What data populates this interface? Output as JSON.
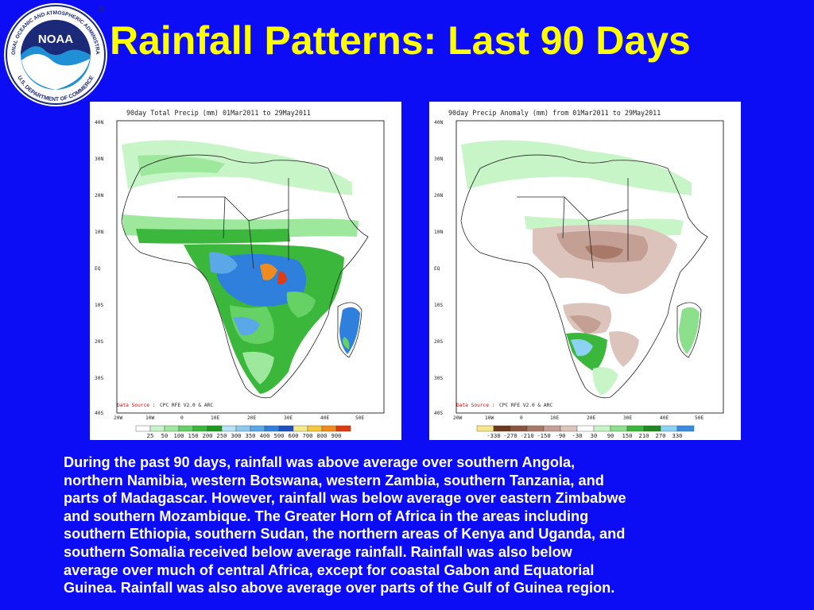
{
  "header": {
    "title": "Rainfall Patterns: Last 90 Days",
    "logo": {
      "icon": "noaa-seal-icon",
      "center_text": "NOAA",
      "ring_top": "NATIONAL OCEANIC AND ATMOSPHERIC ADMINISTRATION",
      "ring_bottom": "U.S. DEPARTMENT OF COMMERCE",
      "colors": {
        "navy": "#1b2a78",
        "sky": "#1f8fd6",
        "white": "#ffffff"
      }
    }
  },
  "maps": [
    {
      "title": "90day Total Precip (mm)    01Mar2011 to 29May2011",
      "lat_labels": [
        "40N",
        "30N",
        "20N",
        "10N",
        "EQ",
        "10S",
        "20S",
        "30S",
        "40S"
      ],
      "lon_labels": [
        "20W",
        "10W",
        "0",
        "10E",
        "20E",
        "30E",
        "40E",
        "50E"
      ],
      "data_source_prefix": "Data Source :",
      "data_source": "CPC RFE V2.0 & ARC",
      "colorbar_labels": [
        "25",
        "50",
        "100",
        "150",
        "200",
        "250",
        "300",
        "350",
        "400",
        "500",
        "600",
        "700",
        "800",
        "900"
      ],
      "colorbar_colors": [
        "#ffffff",
        "#c8f5c8",
        "#9ee89e",
        "#66d266",
        "#3bb83b",
        "#1f9a1f",
        "#b6e2f5",
        "#8cc8f0",
        "#5aa8e8",
        "#2f7fdc",
        "#1f4fc0",
        "#f5eb8c",
        "#f5c842",
        "#f08c1f",
        "#e03a12"
      ]
    },
    {
      "title": "90day Precip Anomaly (mm) from 01Mar2011 to 29May2011",
      "lat_labels": [
        "40N",
        "30N",
        "20N",
        "10N",
        "EQ",
        "10S",
        "20S",
        "30S",
        "40S"
      ],
      "lon_labels": [
        "20W",
        "10W",
        "0",
        "10E",
        "20E",
        "30E",
        "40E",
        "50E"
      ],
      "data_source_prefix": "Data Source :",
      "data_source": "CPC RFE V2.0 & ARC",
      "colorbar_labels": [
        "-330",
        "-270",
        "-210",
        "-150",
        "-90",
        "-30",
        "30",
        "90",
        "150",
        "210",
        "270",
        "330"
      ],
      "colorbar_colors": [
        "#f5e68c",
        "#6b3a22",
        "#8a5540",
        "#a87868",
        "#c4a094",
        "#dcc4bc",
        "#ffffff",
        "#c8f5c8",
        "#8ce08c",
        "#3bb83b",
        "#1f8a1f",
        "#8cd2f5",
        "#3a8ce0"
      ]
    }
  ],
  "description_lines": [
    "During the past 90 days, rainfall was above average over southern Angola,",
    "northern Namibia, western Botswana, western Zambia, southern Tanzania, and",
    "parts of Madagascar.  However, rainfall was below average over eastern Zimbabwe",
    "and southern Mozambique.   The Greater Horn of Africa in the areas including",
    "southern Ethiopia, southern Sudan, the northern areas of Kenya and Uganda, and",
    "southern Somalia received below average rainfall.  Rainfall was also below",
    "average over much of central Africa, except for coastal Gabon and Equatorial",
    "Guinea.  Rainfall was also above average over parts of the Gulf of Guinea region."
  ]
}
